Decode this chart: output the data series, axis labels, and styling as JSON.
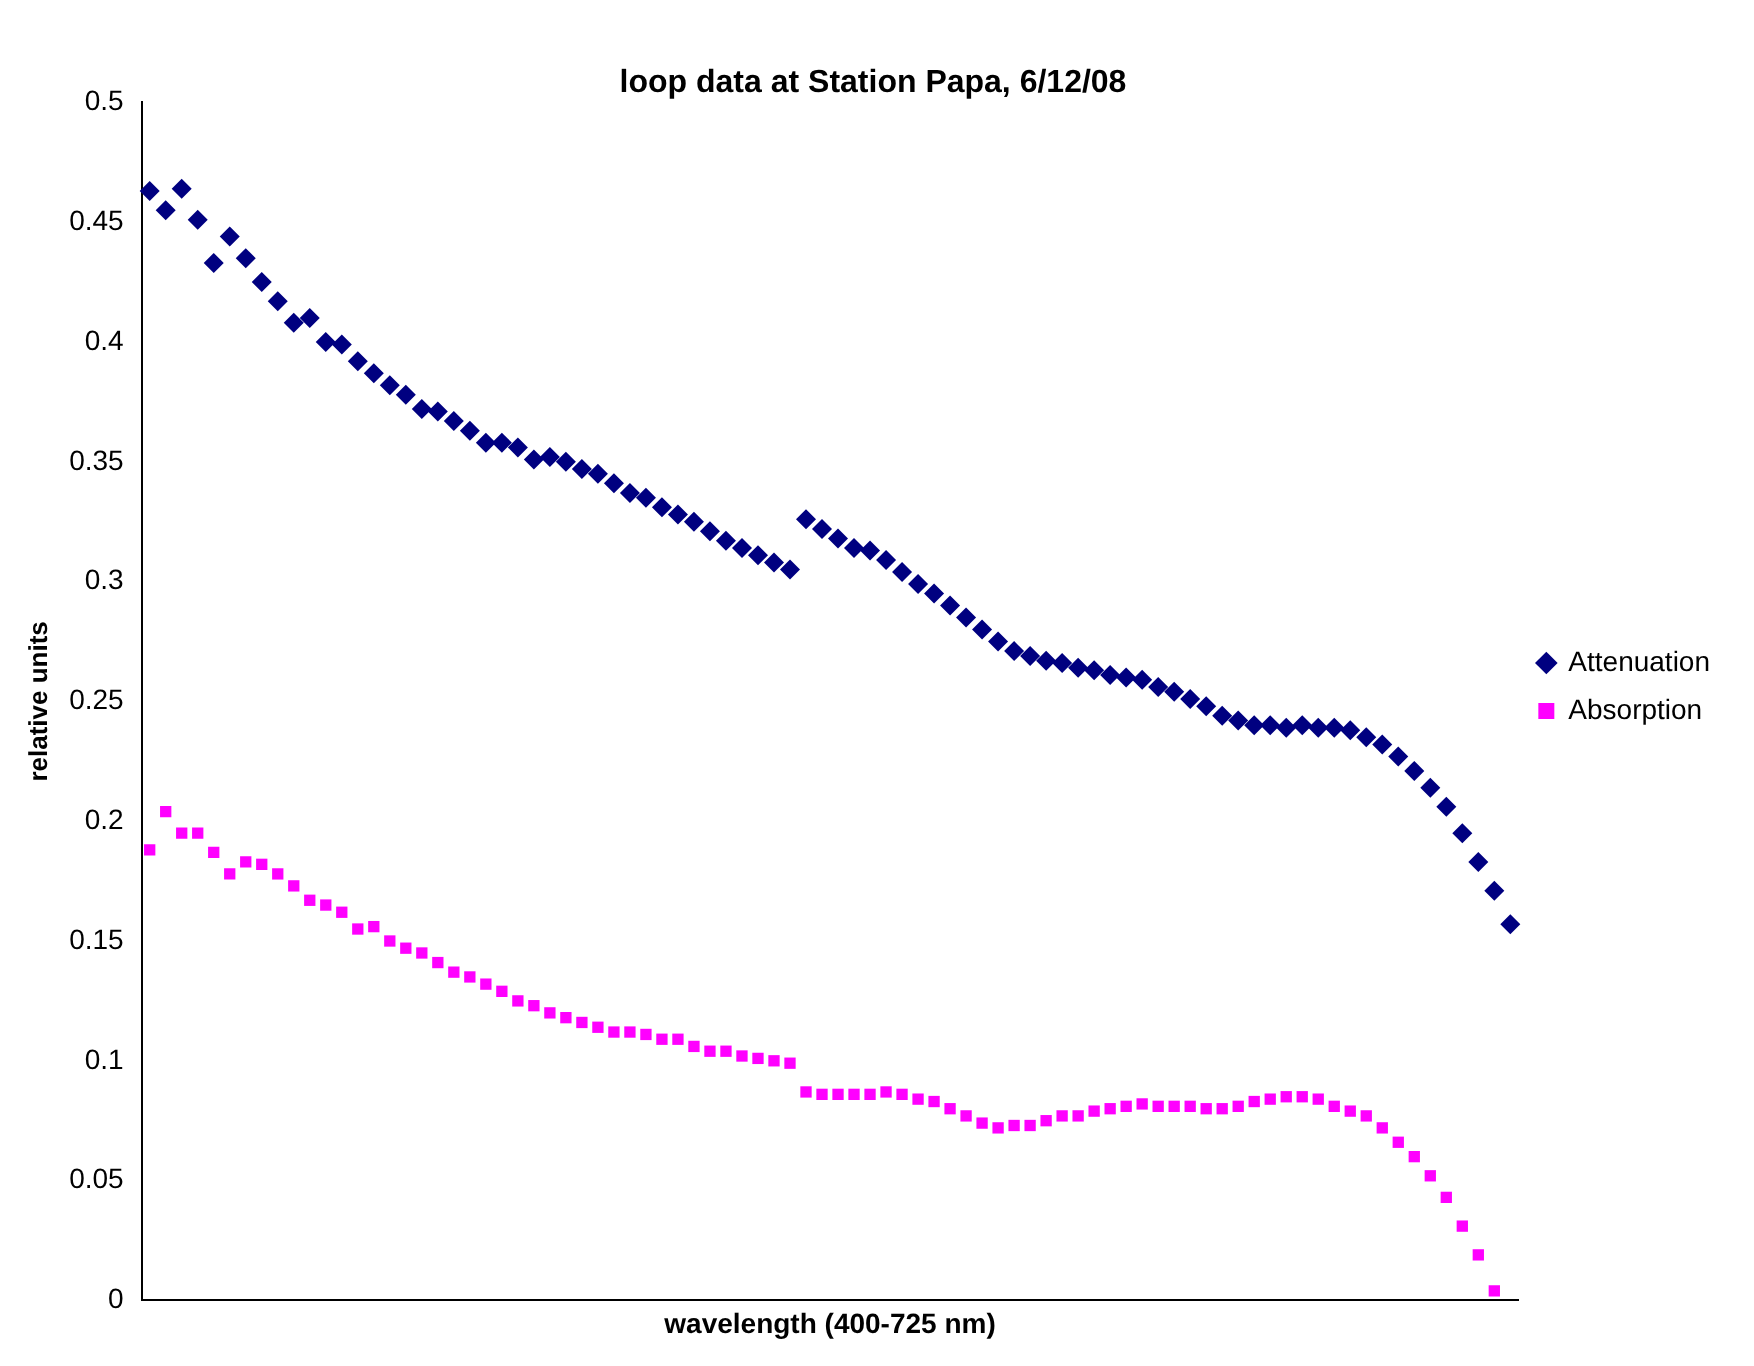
{
  "chart_data": {
    "type": "scatter",
    "title": "loop data at Station Papa, 6/12/08",
    "xlabel": "wavelength (400-725 nm)",
    "ylabel": "relative units",
    "categories": [
      null,
      null,
      null,
      null,
      null,
      null,
      null,
      null,
      null,
      null,
      null,
      null,
      null,
      null,
      null,
      null,
      null,
      null,
      null,
      null,
      null,
      null,
      null,
      null,
      null,
      null,
      null,
      null,
      null,
      null,
      null,
      null,
      null,
      null,
      null,
      null,
      null,
      null,
      null,
      null,
      null,
      null,
      null,
      null,
      null,
      null,
      null,
      null,
      null,
      null,
      null,
      null,
      null,
      null,
      null,
      null,
      null,
      null,
      null,
      null,
      null,
      null,
      null,
      null,
      null,
      null,
      null,
      null,
      null,
      null,
      null,
      null,
      null,
      null,
      null,
      null,
      null,
      null,
      null,
      null,
      null,
      null,
      null,
      null,
      null,
      null
    ],
    "series": [
      {
        "name": "Attenuation",
        "color": "#000080",
        "marker": "diamond",
        "values": [
          0.463,
          0.455,
          0.464,
          0.451,
          0.433,
          0.444,
          0.435,
          0.425,
          0.417,
          0.408,
          0.41,
          0.4,
          0.399,
          0.392,
          0.387,
          0.382,
          0.378,
          0.372,
          0.371,
          0.367,
          0.363,
          0.358,
          0.358,
          0.356,
          0.351,
          0.352,
          0.35,
          0.347,
          0.345,
          0.341,
          0.337,
          0.335,
          0.331,
          0.328,
          0.325,
          0.321,
          0.317,
          0.314,
          0.311,
          0.308,
          0.305,
          0.326,
          0.322,
          0.318,
          0.314,
          0.313,
          0.309,
          0.304,
          0.299,
          0.295,
          0.29,
          0.285,
          0.28,
          0.275,
          0.271,
          0.269,
          0.267,
          0.266,
          0.264,
          0.263,
          0.261,
          0.26,
          0.259,
          0.256,
          0.254,
          0.251,
          0.248,
          0.244,
          0.242,
          0.24,
          0.24,
          0.239,
          0.24,
          0.239,
          0.239,
          0.238,
          0.235,
          0.232,
          0.227,
          0.221,
          0.214,
          0.206,
          0.195,
          0.183,
          0.171,
          0.157
        ]
      },
      {
        "name": "Absorption",
        "color": "#ff00ff",
        "marker": "square",
        "values": [
          0.188,
          0.204,
          0.195,
          0.195,
          0.187,
          0.178,
          0.183,
          0.182,
          0.178,
          0.173,
          0.167,
          0.165,
          0.162,
          0.155,
          0.156,
          0.15,
          0.147,
          0.145,
          0.141,
          0.137,
          0.135,
          0.132,
          0.129,
          0.125,
          0.123,
          0.12,
          0.118,
          0.116,
          0.114,
          0.112,
          0.112,
          0.111,
          0.109,
          0.109,
          0.106,
          0.104,
          0.104,
          0.102,
          0.101,
          0.1,
          0.099,
          0.087,
          0.086,
          0.086,
          0.086,
          0.086,
          0.087,
          0.086,
          0.084,
          0.083,
          0.08,
          0.077,
          0.074,
          0.072,
          0.073,
          0.073,
          0.075,
          0.077,
          0.077,
          0.079,
          0.08,
          0.081,
          0.082,
          0.081,
          0.081,
          0.081,
          0.08,
          0.08,
          0.081,
          0.083,
          0.084,
          0.085,
          0.085,
          0.084,
          0.081,
          0.079,
          0.077,
          0.072,
          0.066,
          0.06,
          0.052,
          0.043,
          0.031,
          0.019,
          0.004,
          null
        ]
      }
    ],
    "ylim": [
      0,
      0.5
    ],
    "yticks": [
      0,
      0.05,
      0.1,
      0.15,
      0.2,
      0.25,
      0.3,
      0.35,
      0.4,
      0.45,
      0.5
    ],
    "grid": false,
    "legend": "right",
    "tick_labels": "y"
  }
}
